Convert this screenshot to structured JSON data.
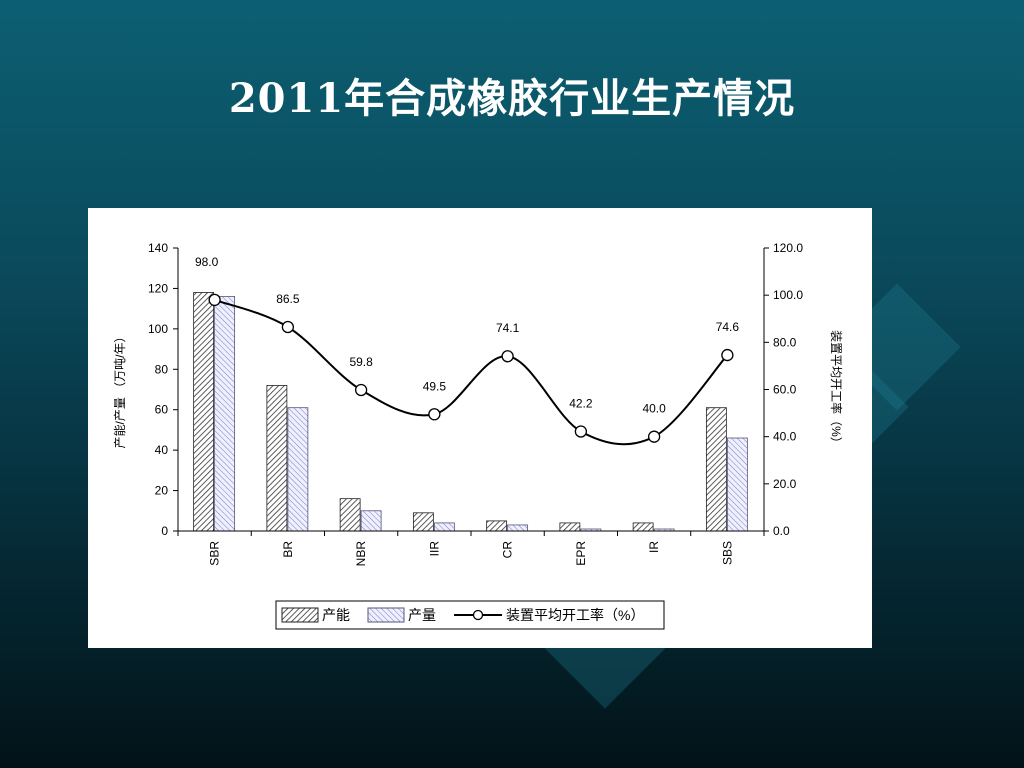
{
  "slide": {
    "title": "2011年合成橡胶行业生产情况"
  },
  "chart_data": {
    "type": "bar",
    "categories": [
      "SBR",
      "BR",
      "NBR",
      "IIR",
      "CR",
      "EPR",
      "IR",
      "SBS"
    ],
    "series": [
      {
        "name": "产能",
        "kind": "bar",
        "axis": "left",
        "pattern": "diagonal-hatch",
        "values": [
          118,
          72,
          16,
          9,
          5,
          4,
          4,
          61
        ]
      },
      {
        "name": "产量",
        "kind": "bar",
        "axis": "left",
        "pattern": "light-blue-hatch",
        "values": [
          116,
          61,
          10,
          4,
          3,
          1,
          1,
          46
        ]
      },
      {
        "name": "装置平均开工率(%)",
        "kind": "line",
        "axis": "right",
        "marker": "circle",
        "values": [
          98.0,
          86.5,
          59.8,
          49.5,
          74.1,
          42.2,
          40.0,
          74.6
        ]
      }
    ],
    "data_labels": [
      "98.0",
      "86.5",
      "59.8",
      "49.5",
      "74.1",
      "42.2",
      "40.0",
      "74.6"
    ],
    "ylabel_left": "产能/产量 （万吨/年）",
    "ylabel_right": "装置平均开工率（%）",
    "yticks_left": [
      "0",
      "20",
      "40",
      "60",
      "80",
      "100",
      "120",
      "140"
    ],
    "yticks_right": [
      "0.0",
      "20.0",
      "40.0",
      "60.0",
      "80.0",
      "100.0",
      "120.0"
    ],
    "ylim_left": [
      0,
      140
    ],
    "ylim_right": [
      0,
      120
    ],
    "legend": {
      "placement": "bottom-center",
      "items": [
        "产能",
        "产量",
        "装置平均开工率（%）"
      ]
    },
    "grid": false,
    "colors": {
      "line": "#000000",
      "bar_hatch_1": "#333333",
      "bar_hatch_2": "#7a7ab8",
      "background": "#ffffff"
    }
  }
}
